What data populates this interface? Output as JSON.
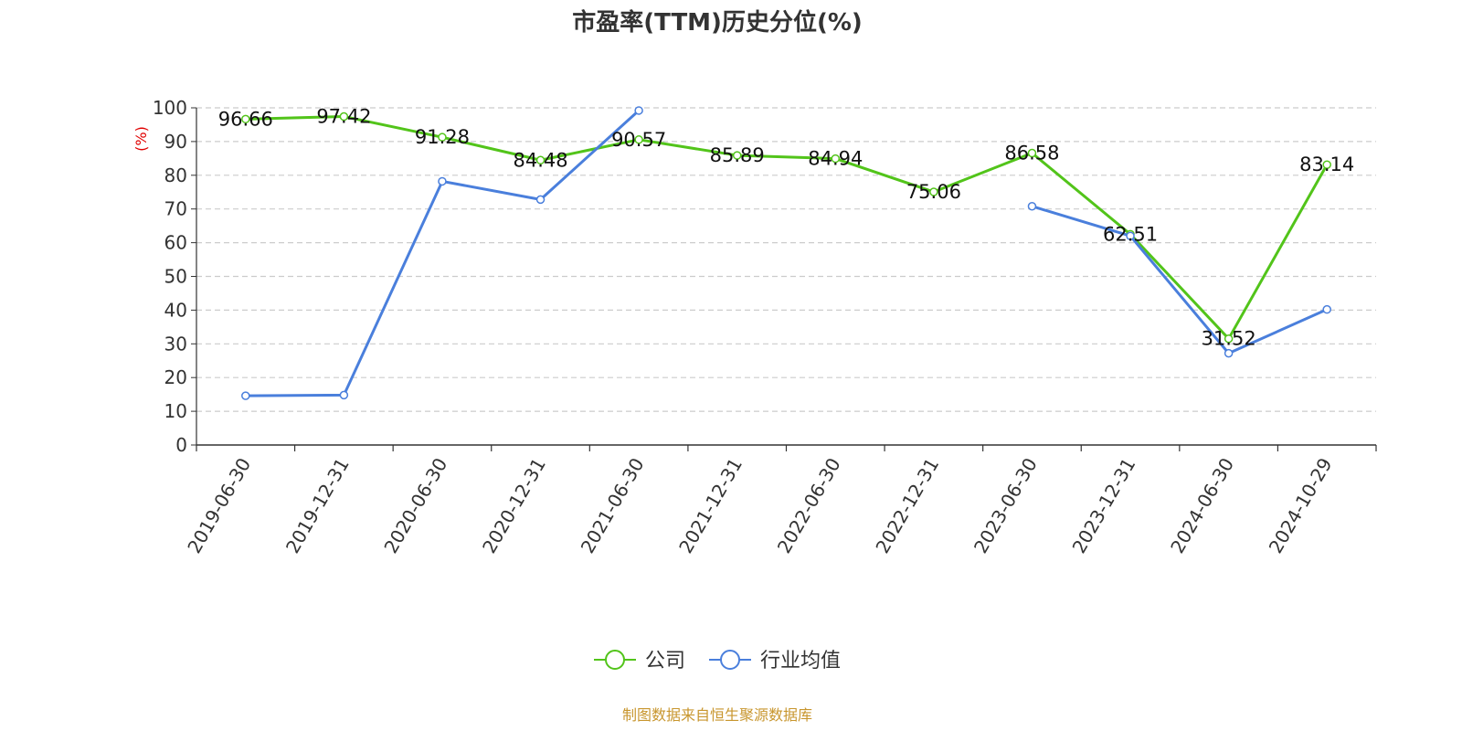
{
  "chart_data": {
    "type": "line",
    "title": "市盈率(TTM)历史分位(%)",
    "ylabel": "(%)",
    "ylim": [
      0,
      100
    ],
    "yticks": [
      0,
      10,
      20,
      30,
      40,
      50,
      60,
      70,
      80,
      90,
      100
    ],
    "grid": "horizontal-dashed",
    "legend_position": "bottom-center",
    "categories": [
      "2019-06-30",
      "2019-12-31",
      "2020-06-30",
      "2020-12-31",
      "2021-06-30",
      "2021-12-31",
      "2022-06-30",
      "2022-12-31",
      "2023-06-30",
      "2023-12-31",
      "2024-06-30",
      "2024-10-29"
    ],
    "series": [
      {
        "name": "公司",
        "color": "#52c41a",
        "values": [
          96.66,
          97.42,
          91.28,
          84.48,
          90.57,
          85.89,
          84.94,
          75.06,
          86.58,
          62.51,
          31.52,
          83.14
        ],
        "labels": [
          "96.66",
          "97.42",
          "91.28",
          "84.48",
          "90.57",
          "85.89",
          "84.94",
          "75.06",
          "86.58",
          "62.51",
          "31.52",
          "83.14"
        ]
      },
      {
        "name": "行业均值",
        "color": "#4a7fdc",
        "values": [
          14.6,
          14.8,
          78.2,
          72.8,
          99.2,
          null,
          null,
          null,
          70.8,
          62.0,
          27.2,
          40.2
        ]
      }
    ],
    "source": "制图数据来自恒生聚源数据库",
    "source_color": "#c8962e",
    "ylabel_color": "#e00000"
  }
}
